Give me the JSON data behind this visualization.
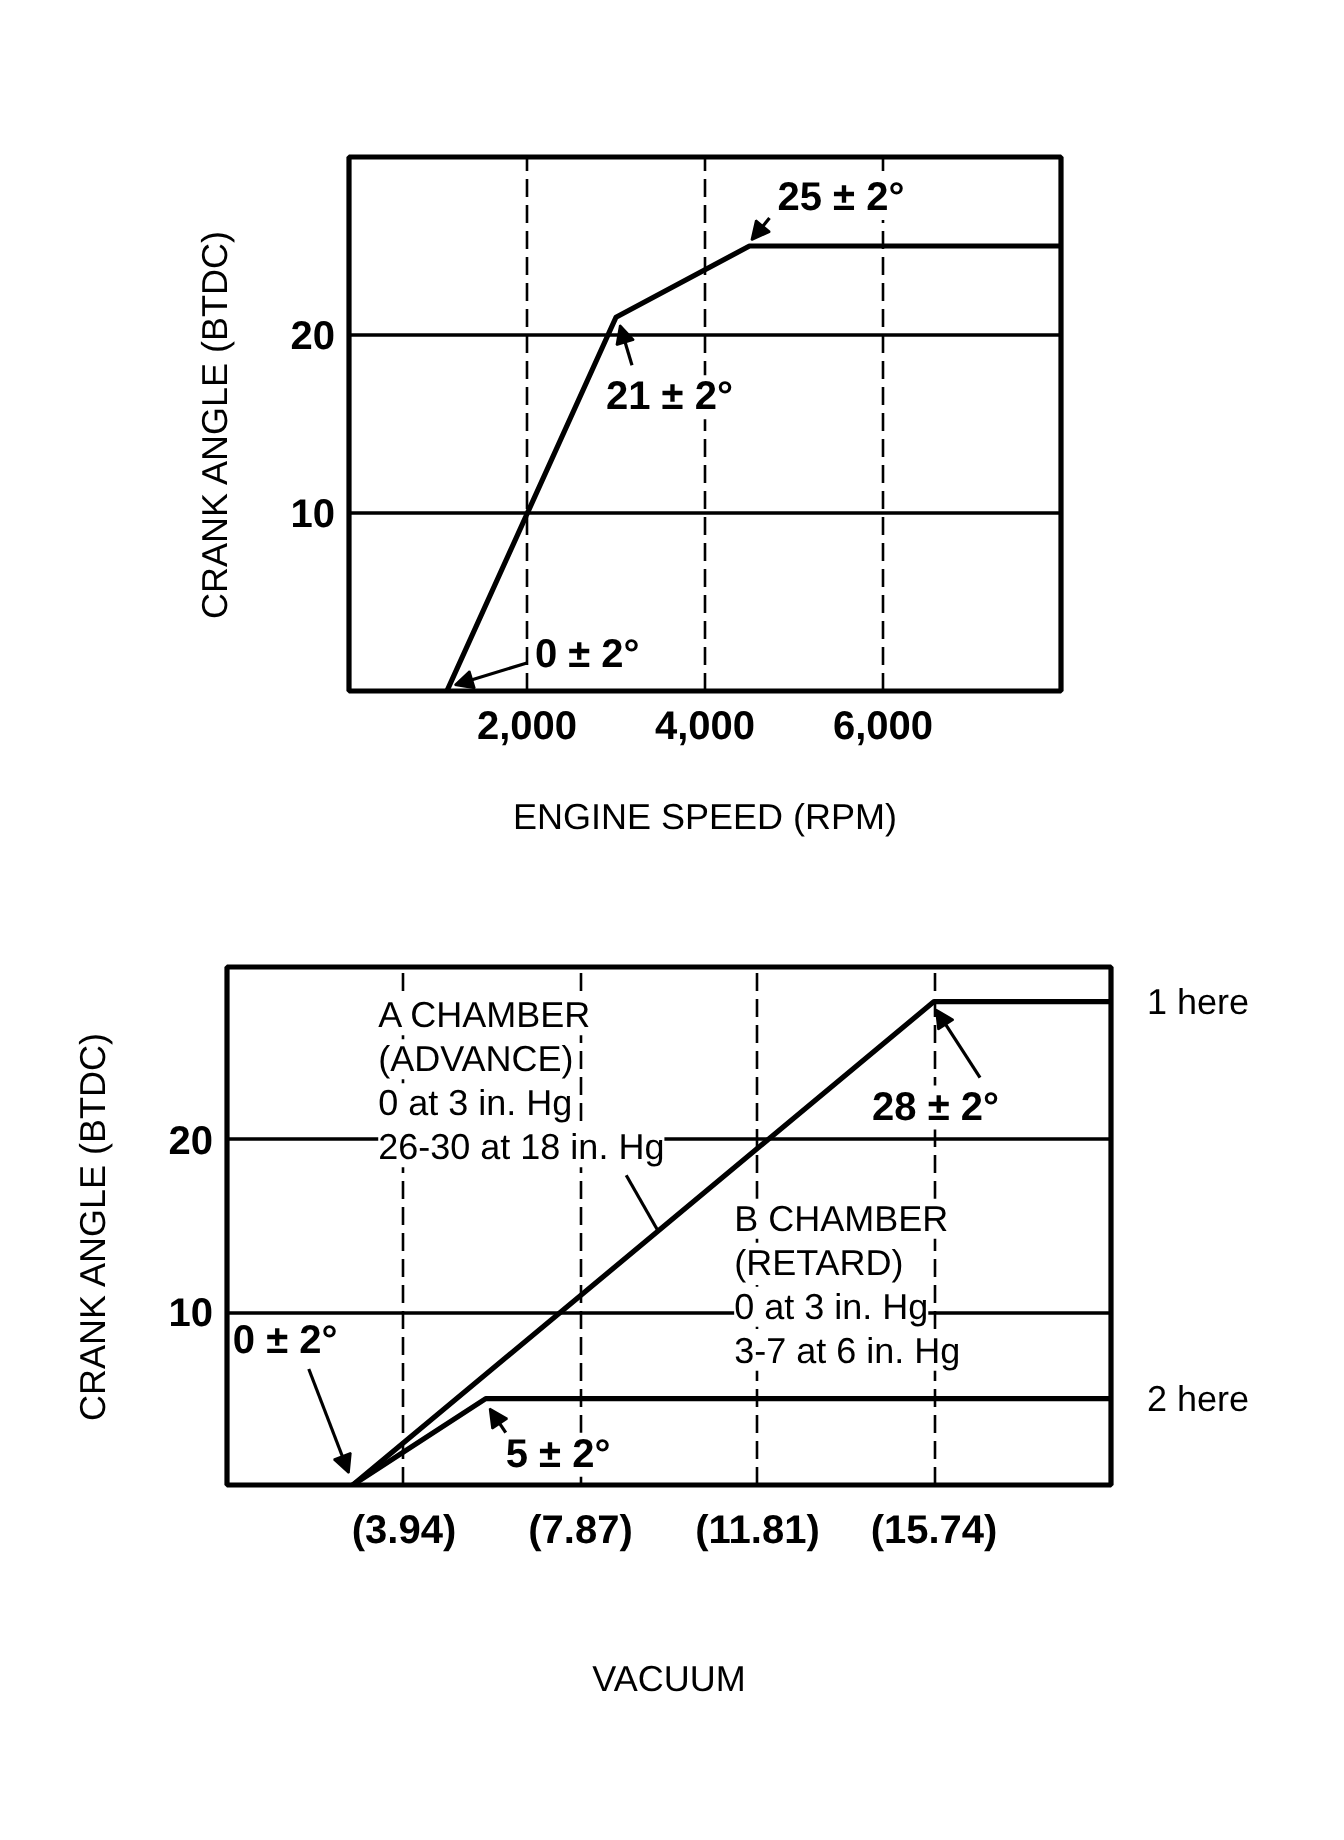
{
  "chart_data": [
    {
      "type": "line",
      "xlabel": "ENGINE SPEED (RPM)",
      "ylabel": "CRANK ANGLE (BTDC)",
      "series": [
        {
          "color": "#000000",
          "x": [
            1100,
            3000,
            4500,
            8000
          ],
          "values": [
            0,
            21,
            25,
            25
          ]
        }
      ],
      "xlim": [
        0,
        8000
      ],
      "ylim": [
        0,
        30
      ],
      "xticks": [
        {
          "value": 2000,
          "label": "2,000"
        },
        {
          "value": 4000,
          "label": "4,000"
        },
        {
          "value": 6000,
          "label": "6,000"
        }
      ],
      "yticks": [
        10,
        20
      ],
      "grid": true,
      "line_style": "solid",
      "annotations": [
        {
          "text": "0 ± 2°",
          "x": 1100,
          "y": 0
        },
        {
          "text": "21 ± 2°",
          "x": 3000,
          "y": 21
        },
        {
          "text": "25 ± 2°",
          "x": 4500,
          "y": 25
        }
      ]
    },
    {
      "type": "line",
      "xlabel": "VACUUM",
      "ylabel": "CRANK ANGLE (BTDC)",
      "series": [
        {
          "name": "1 here",
          "color": "#000000",
          "x": [
            2.8,
            15.74,
            19.68
          ],
          "values": [
            0,
            28,
            28
          ]
        },
        {
          "name": "2 here",
          "color": "#000000",
          "x": [
            2.8,
            5.76,
            19.68
          ],
          "values": [
            0,
            5,
            5
          ]
        }
      ],
      "xlim": [
        0,
        19.68
      ],
      "ylim": [
        0,
        30
      ],
      "xticks": [
        {
          "value": 3.94,
          "label": "(3.94)"
        },
        {
          "value": 7.87,
          "label": "(7.87)"
        },
        {
          "value": 11.81,
          "label": "(11.81)"
        },
        {
          "value": 15.74,
          "label": "(15.74)"
        }
      ],
      "yticks": [
        10,
        20
      ],
      "grid": true,
      "line_style": "solid",
      "annotations": [
        {
          "text": "A CHAMBER\n(ADVANCE)\n0 at 3 in. Hg\n26-30 at 18 in. Hg",
          "x": 9.6,
          "y": 14.7
        },
        {
          "text": "B CHAMBER\n(RETARD)\n0 at 3 in. Hg\n3-7 at 6 in. Hg",
          "x": 10.4,
          "y": 5
        },
        {
          "text": "0 ± 2°",
          "x": 2.8,
          "y": 0
        },
        {
          "text": "5 ± 2°",
          "x": 5.76,
          "y": 5
        },
        {
          "text": "28 ± 2°",
          "x": 15.74,
          "y": 28
        }
      ]
    }
  ]
}
